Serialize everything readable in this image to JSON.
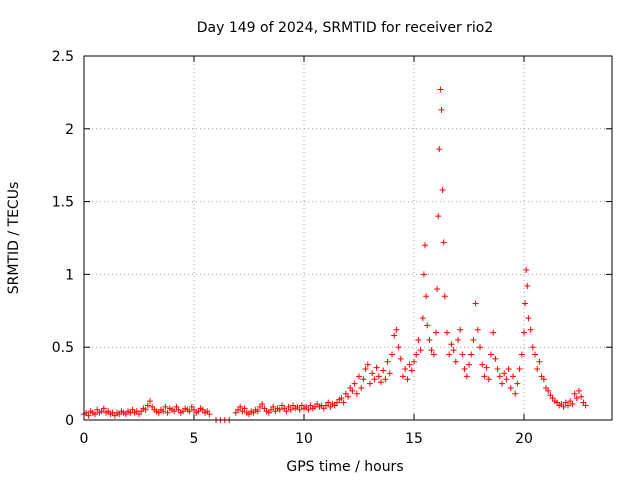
{
  "chart_data": {
    "type": "scatter",
    "title": "Day 149 of 2024, SRMTID for receiver rio2",
    "xlabel": "GPS time / hours",
    "ylabel": "SRMTID / TECUs",
    "xlim": [
      0,
      24
    ],
    "ylim": [
      0,
      2.5
    ],
    "xticks": [
      0,
      5,
      10,
      15,
      20
    ],
    "xtick_labels": [
      "0",
      "5",
      "10",
      "15",
      "20"
    ],
    "yticks": [
      0,
      0.5,
      1,
      1.5,
      2,
      2.5
    ],
    "ytick_labels": [
      "0",
      "0.5",
      "1",
      "1.5",
      "2",
      "2.5"
    ],
    "grid": true,
    "marker": "+",
    "color": "#ff0000",
    "series": [
      {
        "name": "rio2",
        "points": [
          [
            0.0,
            0.04
          ],
          [
            0.1,
            0.05
          ],
          [
            0.2,
            0.03
          ],
          [
            0.3,
            0.06
          ],
          [
            0.4,
            0.05
          ],
          [
            0.5,
            0.04
          ],
          [
            0.6,
            0.07
          ],
          [
            0.7,
            0.05
          ],
          [
            0.8,
            0.06
          ],
          [
            0.9,
            0.08
          ],
          [
            1.0,
            0.05
          ],
          [
            1.1,
            0.06
          ],
          [
            1.2,
            0.04
          ],
          [
            1.3,
            0.05
          ],
          [
            1.4,
            0.03
          ],
          [
            1.5,
            0.05
          ],
          [
            1.6,
            0.04
          ],
          [
            1.7,
            0.06
          ],
          [
            1.8,
            0.05
          ],
          [
            1.9,
            0.04
          ],
          [
            2.0,
            0.06
          ],
          [
            2.1,
            0.05
          ],
          [
            2.2,
            0.07
          ],
          [
            2.3,
            0.05
          ],
          [
            2.4,
            0.06
          ],
          [
            2.5,
            0.04
          ],
          [
            2.6,
            0.06
          ],
          [
            2.7,
            0.08
          ],
          [
            2.8,
            0.07
          ],
          [
            2.9,
            0.1
          ],
          [
            3.0,
            0.13
          ],
          [
            3.1,
            0.09
          ],
          [
            3.2,
            0.07
          ],
          [
            3.3,
            0.06
          ],
          [
            3.4,
            0.05
          ],
          [
            3.5,
            0.07
          ],
          [
            3.6,
            0.06
          ],
          [
            3.7,
            0.09
          ],
          [
            3.8,
            0.05
          ],
          [
            3.9,
            0.08
          ],
          [
            4.0,
            0.07
          ],
          [
            4.1,
            0.06
          ],
          [
            4.2,
            0.09
          ],
          [
            4.3,
            0.07
          ],
          [
            4.4,
            0.05
          ],
          [
            4.5,
            0.06
          ],
          [
            4.6,
            0.08
          ],
          [
            4.7,
            0.07
          ],
          [
            4.8,
            0.06
          ],
          [
            4.9,
            0.09
          ],
          [
            5.0,
            0.07
          ],
          [
            5.1,
            0.05
          ],
          [
            5.2,
            0.06
          ],
          [
            5.3,
            0.08
          ],
          [
            5.4,
            0.07
          ],
          [
            5.5,
            0.05
          ],
          [
            5.6,
            0.06
          ],
          [
            5.7,
            0.04
          ],
          [
            6.0,
            0.0
          ],
          [
            6.2,
            0.0
          ],
          [
            6.4,
            0.0
          ],
          [
            6.6,
            0.0
          ],
          [
            6.9,
            0.05
          ],
          [
            7.0,
            0.07
          ],
          [
            7.1,
            0.09
          ],
          [
            7.2,
            0.06
          ],
          [
            7.3,
            0.08
          ],
          [
            7.4,
            0.05
          ],
          [
            7.5,
            0.04
          ],
          [
            7.6,
            0.06
          ],
          [
            7.7,
            0.05
          ],
          [
            7.8,
            0.07
          ],
          [
            7.9,
            0.06
          ],
          [
            8.0,
            0.09
          ],
          [
            8.1,
            0.11
          ],
          [
            8.2,
            0.08
          ],
          [
            8.3,
            0.06
          ],
          [
            8.4,
            0.05
          ],
          [
            8.5,
            0.07
          ],
          [
            8.6,
            0.09
          ],
          [
            8.7,
            0.06
          ],
          [
            8.8,
            0.08
          ],
          [
            8.9,
            0.07
          ],
          [
            9.0,
            0.1
          ],
          [
            9.1,
            0.08
          ],
          [
            9.2,
            0.06
          ],
          [
            9.3,
            0.09
          ],
          [
            9.4,
            0.07
          ],
          [
            9.5,
            0.1
          ],
          [
            9.6,
            0.08
          ],
          [
            9.7,
            0.09
          ],
          [
            9.8,
            0.07
          ],
          [
            9.9,
            0.1
          ],
          [
            10.0,
            0.08
          ],
          [
            10.1,
            0.09
          ],
          [
            10.2,
            0.07
          ],
          [
            10.3,
            0.1
          ],
          [
            10.4,
            0.08
          ],
          [
            10.5,
            0.09
          ],
          [
            10.6,
            0.11
          ],
          [
            10.7,
            0.09
          ],
          [
            10.8,
            0.1
          ],
          [
            10.9,
            0.08
          ],
          [
            11.0,
            0.1
          ],
          [
            11.1,
            0.12
          ],
          [
            11.2,
            0.09
          ],
          [
            11.3,
            0.11
          ],
          [
            11.4,
            0.1
          ],
          [
            11.5,
            0.12
          ],
          [
            11.6,
            0.14
          ],
          [
            11.7,
            0.15
          ],
          [
            11.8,
            0.12
          ],
          [
            11.9,
            0.18
          ],
          [
            12.0,
            0.16
          ],
          [
            12.1,
            0.22
          ],
          [
            12.2,
            0.2
          ],
          [
            12.3,
            0.25
          ],
          [
            12.4,
            0.18
          ],
          [
            12.5,
            0.3
          ],
          [
            12.6,
            0.22
          ],
          [
            12.7,
            0.28
          ],
          [
            12.8,
            0.35
          ],
          [
            12.9,
            0.38
          ],
          [
            13.0,
            0.25
          ],
          [
            13.1,
            0.32
          ],
          [
            13.2,
            0.28
          ],
          [
            13.3,
            0.36
          ],
          [
            13.4,
            0.3
          ],
          [
            13.5,
            0.26
          ],
          [
            13.6,
            0.34
          ],
          [
            13.7,
            0.28
          ],
          [
            13.8,
            0.4
          ],
          [
            13.9,
            0.32
          ],
          [
            14.0,
            0.45
          ],
          [
            14.1,
            0.58
          ],
          [
            14.2,
            0.62
          ],
          [
            14.3,
            0.5
          ],
          [
            14.4,
            0.42
          ],
          [
            14.5,
            0.3
          ],
          [
            14.6,
            0.35
          ],
          [
            14.7,
            0.28
          ],
          [
            14.8,
            0.38
          ],
          [
            14.9,
            0.34
          ],
          [
            15.0,
            0.4
          ],
          [
            15.1,
            0.45
          ],
          [
            15.2,
            0.55
          ],
          [
            15.3,
            0.48
          ],
          [
            15.4,
            0.7
          ],
          [
            15.45,
            1.0
          ],
          [
            15.5,
            1.2
          ],
          [
            15.55,
            0.85
          ],
          [
            15.6,
            0.65
          ],
          [
            15.7,
            0.55
          ],
          [
            15.8,
            0.48
          ],
          [
            15.9,
            0.45
          ],
          [
            16.0,
            0.6
          ],
          [
            16.05,
            0.9
          ],
          [
            16.1,
            1.4
          ],
          [
            16.15,
            1.86
          ],
          [
            16.2,
            2.27
          ],
          [
            16.25,
            2.13
          ],
          [
            16.3,
            1.58
          ],
          [
            16.35,
            1.22
          ],
          [
            16.4,
            0.85
          ],
          [
            16.5,
            0.6
          ],
          [
            16.6,
            0.45
          ],
          [
            16.7,
            0.52
          ],
          [
            16.8,
            0.48
          ],
          [
            16.9,
            0.4
          ],
          [
            17.0,
            0.55
          ],
          [
            17.1,
            0.62
          ],
          [
            17.2,
            0.45
          ],
          [
            17.3,
            0.35
          ],
          [
            17.4,
            0.3
          ],
          [
            17.5,
            0.38
          ],
          [
            17.6,
            0.45
          ],
          [
            17.7,
            0.55
          ],
          [
            17.8,
            0.8
          ],
          [
            17.9,
            0.62
          ],
          [
            18.0,
            0.5
          ],
          [
            18.1,
            0.38
          ],
          [
            18.2,
            0.3
          ],
          [
            18.3,
            0.36
          ],
          [
            18.4,
            0.28
          ],
          [
            18.5,
            0.45
          ],
          [
            18.6,
            0.6
          ],
          [
            18.7,
            0.42
          ],
          [
            18.8,
            0.35
          ],
          [
            18.9,
            0.3
          ],
          [
            19.0,
            0.25
          ],
          [
            19.1,
            0.32
          ],
          [
            19.2,
            0.28
          ],
          [
            19.3,
            0.35
          ],
          [
            19.4,
            0.22
          ],
          [
            19.5,
            0.3
          ],
          [
            19.6,
            0.18
          ],
          [
            19.7,
            0.25
          ],
          [
            19.8,
            0.35
          ],
          [
            19.9,
            0.45
          ],
          [
            20.0,
            0.6
          ],
          [
            20.05,
            0.8
          ],
          [
            20.1,
            1.03
          ],
          [
            20.15,
            0.92
          ],
          [
            20.2,
            0.7
          ],
          [
            20.3,
            0.62
          ],
          [
            20.4,
            0.5
          ],
          [
            20.5,
            0.45
          ],
          [
            20.6,
            0.35
          ],
          [
            20.7,
            0.4
          ],
          [
            20.8,
            0.3
          ],
          [
            20.9,
            0.28
          ],
          [
            21.0,
            0.22
          ],
          [
            21.1,
            0.2
          ],
          [
            21.2,
            0.17
          ],
          [
            21.3,
            0.15
          ],
          [
            21.4,
            0.13
          ],
          [
            21.5,
            0.12
          ],
          [
            21.6,
            0.1
          ],
          [
            21.7,
            0.11
          ],
          [
            21.8,
            0.09
          ],
          [
            21.9,
            0.12
          ],
          [
            22.0,
            0.1
          ],
          [
            22.1,
            0.13
          ],
          [
            22.2,
            0.11
          ],
          [
            22.3,
            0.18
          ],
          [
            22.4,
            0.15
          ],
          [
            22.5,
            0.2
          ],
          [
            22.6,
            0.16
          ],
          [
            22.7,
            0.12
          ],
          [
            22.8,
            0.1
          ]
        ]
      }
    ]
  }
}
